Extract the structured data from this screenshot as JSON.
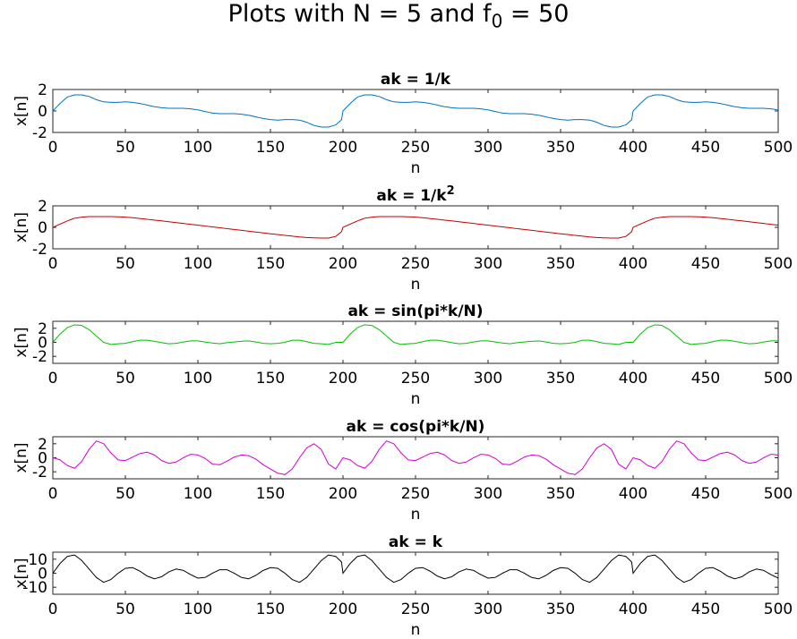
{
  "figure": {
    "suptitle_prefix": "Plots with N = 5 and f",
    "suptitle_sub": "0",
    "suptitle_suffix": " = 50"
  },
  "chart_data": [
    {
      "type": "line",
      "title": "ak = 1/k",
      "xlabel": "n",
      "ylabel": "x[n]",
      "xlim": [
        0,
        500
      ],
      "ylim": [
        -2,
        2
      ],
      "xticks": [
        0,
        50,
        100,
        150,
        200,
        250,
        300,
        350,
        400,
        450,
        500
      ],
      "yticks": [
        2,
        0,
        -2
      ],
      "color": "#0072BD",
      "series": [
        {
          "x": [
            0,
            5,
            10,
            15,
            20,
            25,
            30,
            35,
            40,
            45,
            50,
            55,
            60,
            65,
            70,
            75,
            80,
            85,
            90,
            95,
            100,
            105,
            110,
            115,
            120,
            125,
            130,
            135,
            140,
            145,
            150,
            155,
            160,
            165,
            170,
            175,
            180,
            185,
            190,
            195,
            200
          ],
          "values": [
            0.0,
            0.7,
            1.3,
            1.5,
            1.5,
            1.35,
            1.05,
            0.85,
            0.8,
            0.8,
            0.85,
            0.8,
            0.7,
            0.55,
            0.4,
            0.3,
            0.25,
            0.25,
            0.25,
            0.2,
            0.1,
            -0.05,
            -0.2,
            -0.25,
            -0.25,
            -0.25,
            -0.3,
            -0.4,
            -0.55,
            -0.7,
            -0.8,
            -0.85,
            -0.8,
            -0.8,
            -0.85,
            -1.05,
            -1.35,
            -1.5,
            -1.5,
            -1.3,
            -0.7
          ]
        }
      ]
    },
    {
      "type": "line",
      "title": "ak = 1/k",
      "title_sup": "2",
      "xlabel": "n",
      "ylabel": "x[n]",
      "xlim": [
        0,
        500
      ],
      "ylim": [
        -2,
        2
      ],
      "xticks": [
        0,
        50,
        100,
        150,
        200,
        250,
        300,
        350,
        400,
        450,
        500
      ],
      "yticks": [
        2,
        0,
        -2
      ],
      "color": "#C00000",
      "series": [
        {
          "x": [
            0,
            5,
            10,
            15,
            20,
            25,
            30,
            35,
            40,
            45,
            50,
            55,
            60,
            65,
            70,
            75,
            80,
            85,
            90,
            95,
            100,
            105,
            110,
            115,
            120,
            125,
            130,
            135,
            140,
            145,
            150,
            155,
            160,
            165,
            170,
            175,
            180,
            185,
            190,
            195,
            200
          ],
          "values": [
            0.0,
            0.3,
            0.6,
            0.85,
            0.95,
            1.0,
            1.0,
            1.0,
            1.0,
            0.98,
            0.95,
            0.9,
            0.82,
            0.75,
            0.67,
            0.6,
            0.52,
            0.44,
            0.36,
            0.28,
            0.2,
            0.12,
            0.04,
            -0.04,
            -0.12,
            -0.2,
            -0.28,
            -0.36,
            -0.44,
            -0.52,
            -0.6,
            -0.67,
            -0.75,
            -0.82,
            -0.9,
            -0.95,
            -0.98,
            -1.0,
            -1.0,
            -0.85,
            -0.3
          ]
        }
      ]
    },
    {
      "type": "line",
      "title": "ak = sin(pi*k/N)",
      "xlabel": "n",
      "ylabel": "x[n]",
      "xlim": [
        0,
        500
      ],
      "ylim": [
        -3,
        3
      ],
      "xticks": [
        0,
        50,
        100,
        150,
        200,
        250,
        300,
        350,
        400,
        450,
        500
      ],
      "yticks": [
        2,
        0,
        -2
      ],
      "color": "#00C000",
      "series": [
        {
          "x": [
            0,
            5,
            10,
            15,
            20,
            25,
            30,
            35,
            40,
            45,
            50,
            55,
            60,
            65,
            70,
            75,
            80,
            85,
            90,
            95,
            100,
            105,
            110,
            115,
            120,
            125,
            130,
            135,
            140,
            145,
            150,
            155,
            160,
            165,
            170,
            175,
            180,
            185,
            190,
            195,
            200
          ],
          "values": [
            0.0,
            1.2,
            2.1,
            2.5,
            2.4,
            1.8,
            0.9,
            0.0,
            -0.3,
            -0.2,
            -0.15,
            0.1,
            0.3,
            0.3,
            0.15,
            -0.05,
            -0.2,
            -0.15,
            0.05,
            0.2,
            0.2,
            0.05,
            -0.1,
            -0.2,
            -0.05,
            0.05,
            0.15,
            0.2,
            0.05,
            -0.15,
            -0.2,
            -0.15,
            0.0,
            0.3,
            0.3,
            0.1,
            -0.15,
            -0.2,
            -0.3,
            0.0,
            0.0
          ]
        }
      ]
    },
    {
      "type": "line",
      "title": "ak = cos(pi*k/N)",
      "xlabel": "n",
      "ylabel": "x[n]",
      "xlim": [
        0,
        500
      ],
      "ylim": [
        -3,
        3
      ],
      "xticks": [
        0,
        50,
        100,
        150,
        200,
        250,
        300,
        350,
        400,
        450,
        500
      ],
      "yticks": [
        2,
        0,
        -2
      ],
      "color": "#D000D0",
      "series": [
        {
          "x": [
            0,
            5,
            10,
            15,
            20,
            25,
            30,
            35,
            40,
            45,
            50,
            55,
            60,
            65,
            70,
            75,
            80,
            85,
            90,
            95,
            100,
            105,
            110,
            115,
            120,
            125,
            130,
            135,
            140,
            145,
            150,
            155,
            160,
            165,
            170,
            175,
            180,
            185,
            190,
            195,
            200
          ],
          "values": [
            0.0,
            -0.3,
            -1.1,
            -1.5,
            -0.5,
            1.2,
            2.4,
            2.0,
            0.7,
            -0.3,
            -0.4,
            0.1,
            0.6,
            0.8,
            0.4,
            -0.4,
            -0.8,
            -0.6,
            0.0,
            0.5,
            0.4,
            -0.1,
            -0.9,
            -1.0,
            -0.5,
            0.1,
            0.4,
            0.3,
            -0.2,
            -1.0,
            -1.6,
            -2.2,
            -2.4,
            -1.6,
            0.0,
            1.4,
            2.0,
            1.2,
            -0.9,
            -1.6,
            0.0
          ]
        }
      ]
    },
    {
      "type": "line",
      "title": "ak = k",
      "xlabel": "n",
      "ylabel": "x[n]",
      "xlim": [
        0,
        500
      ],
      "ylim": [
        -15,
        15
      ],
      "xticks": [
        0,
        50,
        100,
        150,
        200,
        250,
        300,
        350,
        400,
        450,
        500
      ],
      "yticks": [
        10,
        0,
        -10
      ],
      "color": "#000000",
      "series": [
        {
          "x": [
            0,
            5,
            10,
            15,
            20,
            25,
            30,
            35,
            40,
            45,
            50,
            55,
            60,
            65,
            70,
            75,
            80,
            85,
            90,
            95,
            100,
            105,
            110,
            115,
            120,
            125,
            130,
            135,
            140,
            145,
            150,
            155,
            160,
            165,
            170,
            175,
            180,
            185,
            190,
            195,
            200
          ],
          "values": [
            0.0,
            7.0,
            12.0,
            13.0,
            9.0,
            3.0,
            -3.0,
            -6.5,
            -4.5,
            0.0,
            3.5,
            4.0,
            1.5,
            -2.0,
            -4.0,
            -2.5,
            1.0,
            3.0,
            2.0,
            -1.0,
            -3.5,
            -3.0,
            0.0,
            2.5,
            2.5,
            0.0,
            -3.0,
            -4.0,
            -1.5,
            2.0,
            4.0,
            3.5,
            0.0,
            -4.5,
            -6.5,
            -3.0,
            3.0,
            9.0,
            13.0,
            12.0,
            7.0
          ]
        }
      ]
    }
  ]
}
